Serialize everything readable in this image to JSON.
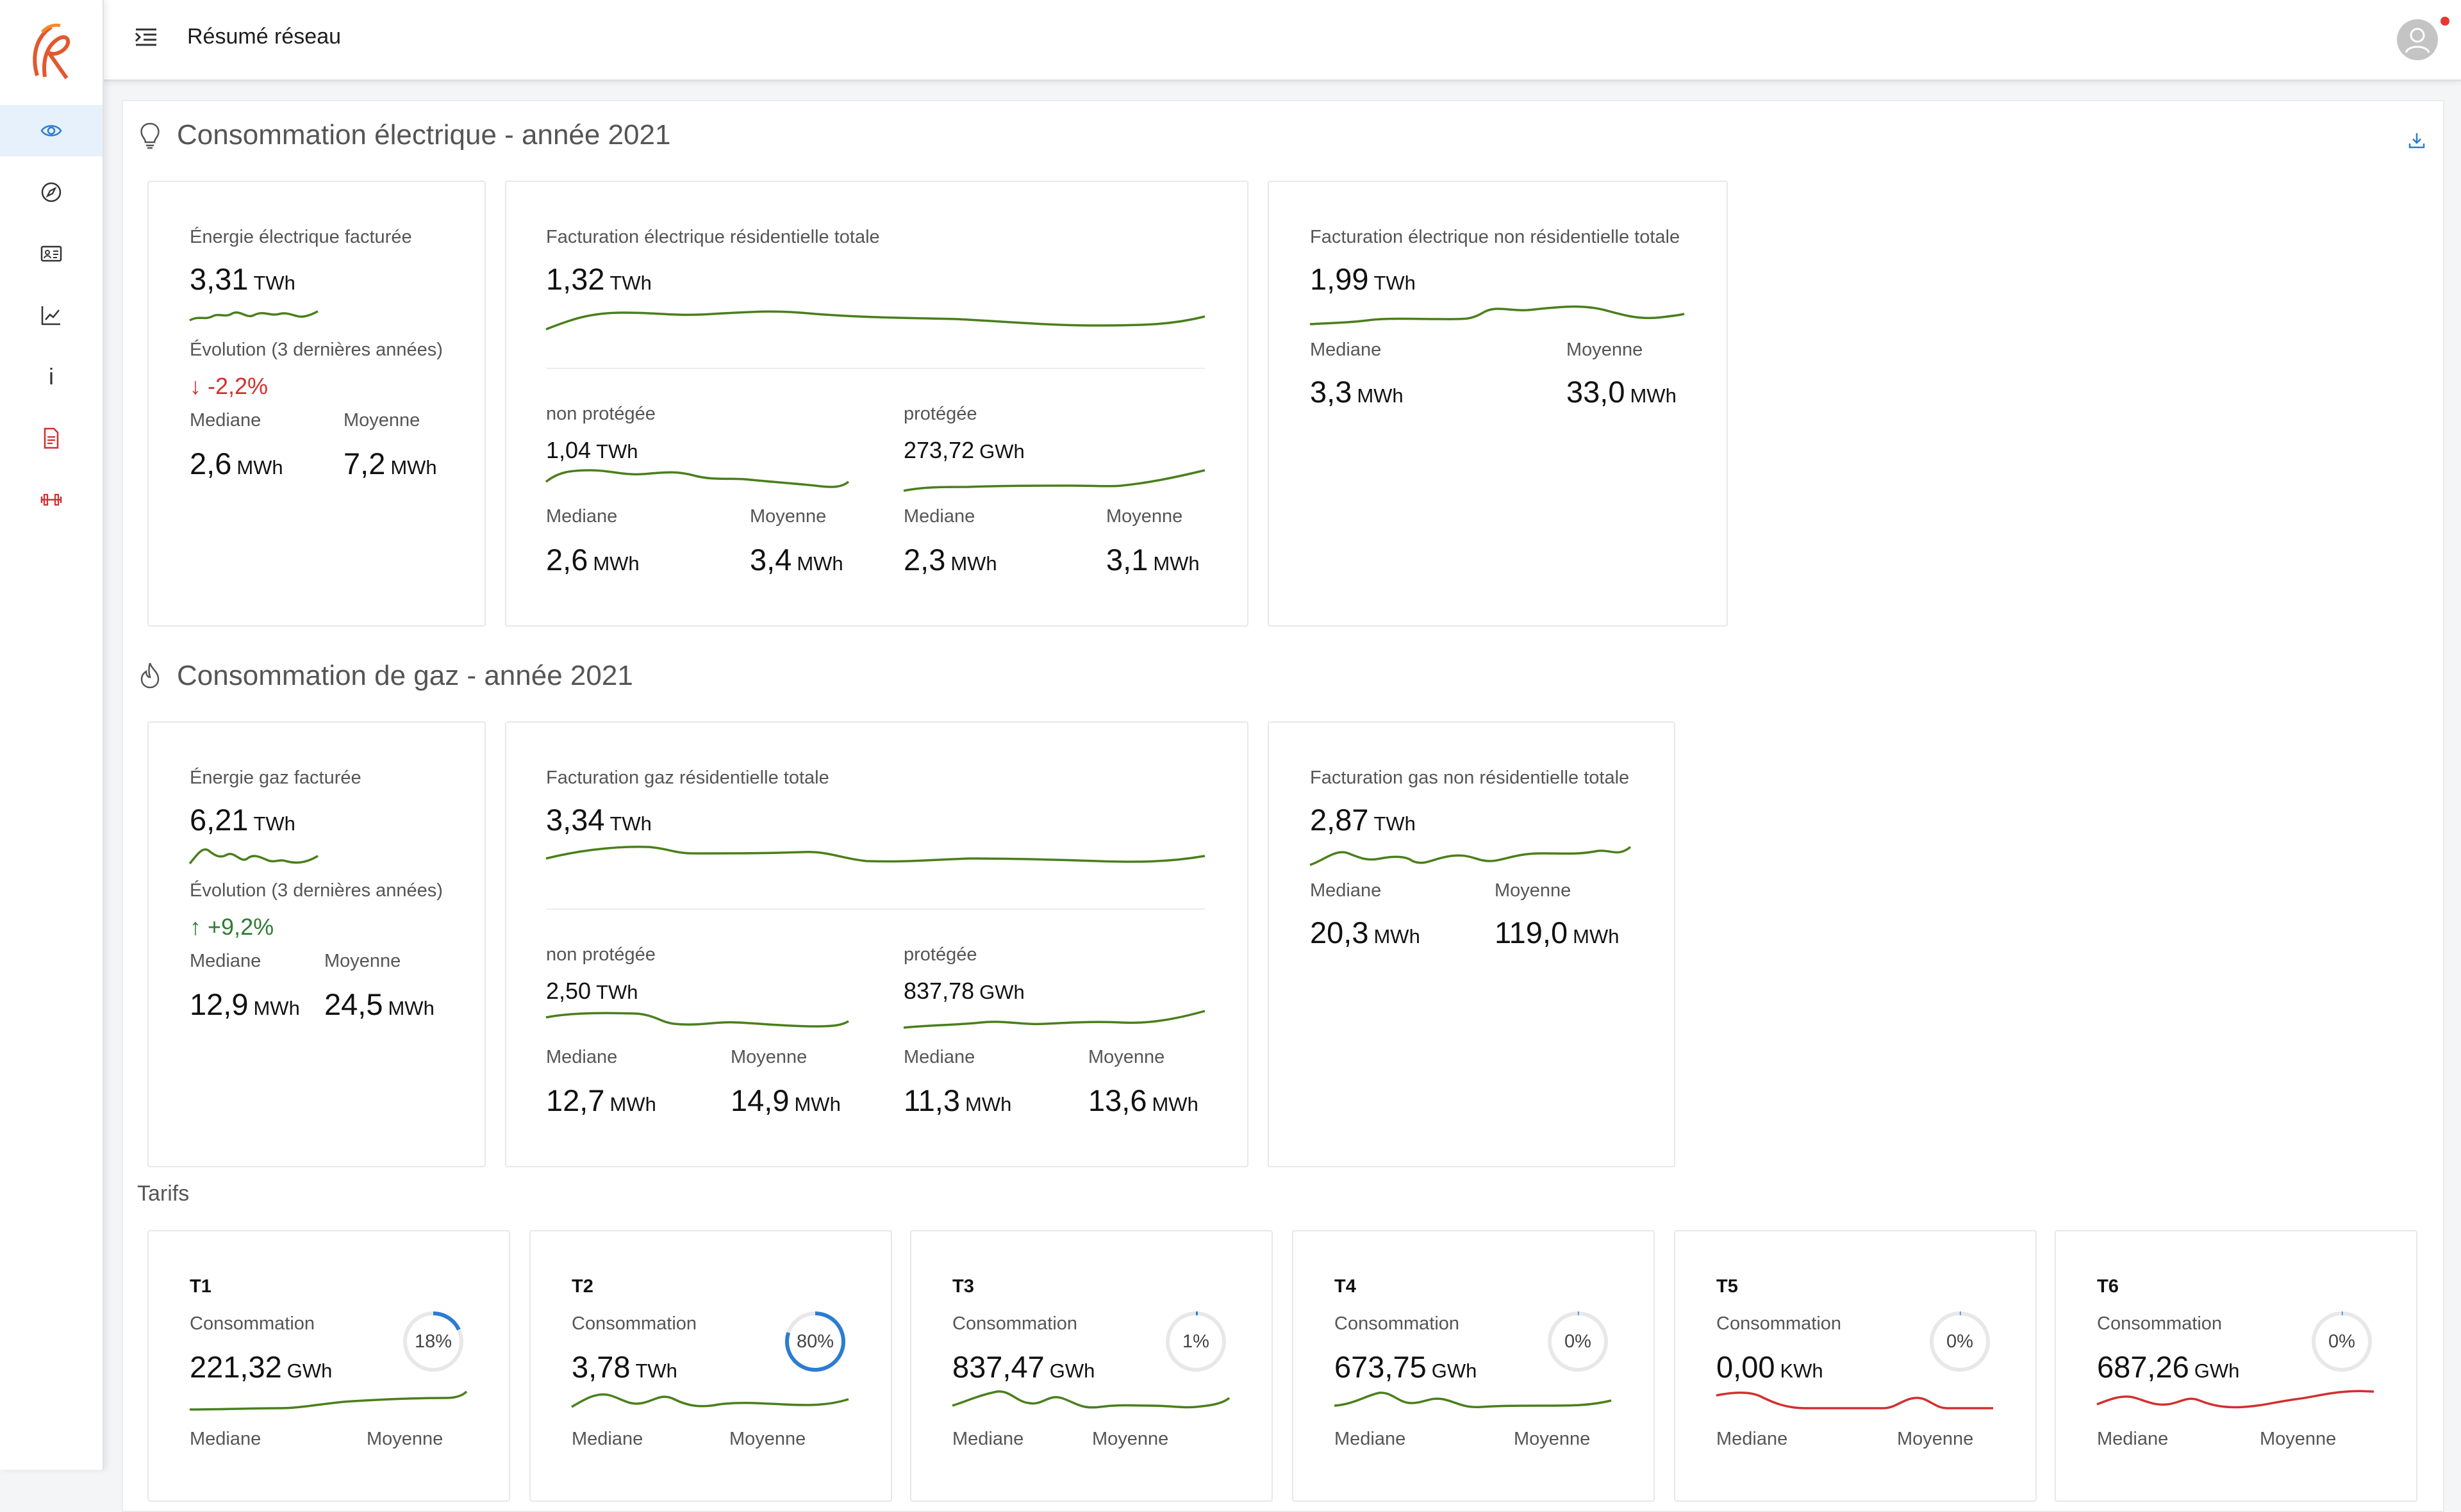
{
  "header": {
    "title": "Résumé réseau"
  },
  "sidebar": {
    "items": [
      {
        "icon": "eye-icon",
        "active": true
      },
      {
        "icon": "compass-icon"
      },
      {
        "icon": "id-card-icon"
      },
      {
        "icon": "line-chart-icon"
      },
      {
        "icon": "info-icon",
        "text": "i"
      },
      {
        "icon": "document-icon"
      },
      {
        "icon": "barbell-icon"
      }
    ]
  },
  "colors": {
    "green": "#4a7f1c",
    "red": "#d32f2f",
    "blue": "#2b7cd3",
    "active_bg": "#e6f1fb"
  },
  "elec": {
    "title": "Consommation électrique - année 2021",
    "card1": {
      "label": "Énergie électrique facturée",
      "value": "3,31",
      "unit": "TWh",
      "evo_label": "Évolution (3 dernières années)",
      "evo_arrow": "↓",
      "evo_value": "-2,2%",
      "median_label": "Mediane",
      "median": "2,6",
      "median_unit": "MWh",
      "mean_label": "Moyenne",
      "mean": "7,2",
      "mean_unit": "MWh"
    },
    "card2": {
      "label": "Facturation électrique résidentielle totale",
      "value": "1,32",
      "unit": "TWh",
      "np": {
        "label": "non protégée",
        "value": "1,04",
        "unit": "TWh",
        "median_label": "Mediane",
        "median": "2,6",
        "median_unit": "MWh",
        "mean_label": "Moyenne",
        "mean": "3,4",
        "mean_unit": "MWh"
      },
      "p": {
        "label": "protégée",
        "value": "273,72",
        "unit": "GWh",
        "median_label": "Mediane",
        "median": "2,3",
        "median_unit": "MWh",
        "mean_label": "Moyenne",
        "mean": "3,1",
        "mean_unit": "MWh"
      }
    },
    "card3": {
      "label": "Facturation électrique non résidentielle totale",
      "value": "1,99",
      "unit": "TWh",
      "median_label": "Mediane",
      "median": "3,3",
      "median_unit": "MWh",
      "mean_label": "Moyenne",
      "mean": "33,0",
      "mean_unit": "MWh"
    }
  },
  "gaz": {
    "title": "Consommation de gaz - année 2021",
    "card1": {
      "label": "Énergie gaz facturée",
      "value": "6,21",
      "unit": "TWh",
      "evo_label": "Évolution (3 dernières années)",
      "evo_arrow": "↑",
      "evo_value": "+9,2%",
      "median_label": "Mediane",
      "median": "12,9",
      "median_unit": "MWh",
      "mean_label": "Moyenne",
      "mean": "24,5",
      "mean_unit": "MWh"
    },
    "card2": {
      "label": "Facturation gaz résidentielle totale",
      "value": "3,34",
      "unit": "TWh",
      "np": {
        "label": "non protégée",
        "value": "2,50",
        "unit": "TWh",
        "median_label": "Mediane",
        "median": "12,7",
        "median_unit": "MWh",
        "mean_label": "Moyenne",
        "mean": "14,9",
        "mean_unit": "MWh"
      },
      "p": {
        "label": "protégée",
        "value": "837,78",
        "unit": "GWh",
        "median_label": "Mediane",
        "median": "11,3",
        "median_unit": "MWh",
        "mean_label": "Moyenne",
        "mean": "13,6",
        "mean_unit": "MWh"
      }
    },
    "card3": {
      "label": "Facturation gas non résidentielle totale",
      "value": "2,87",
      "unit": "TWh",
      "median_label": "Mediane",
      "median": "20,3",
      "median_unit": "MWh",
      "mean_label": "Moyenne",
      "mean": "119,0",
      "mean_unit": "MWh"
    }
  },
  "tarifs": {
    "title": "Tarifs",
    "items": [
      {
        "name": "T1",
        "cons_label": "Consommation",
        "value": "221,32",
        "unit": "GWh",
        "pct": "18%",
        "pct_value": 0.18,
        "median_label": "Mediane",
        "mean_label": "Moyenne"
      },
      {
        "name": "T2",
        "cons_label": "Consommation",
        "value": "3,78",
        "unit": "TWh",
        "pct": "80%",
        "pct_value": 0.8,
        "median_label": "Mediane",
        "mean_label": "Moyenne"
      },
      {
        "name": "T3",
        "cons_label": "Consommation",
        "value": "837,47",
        "unit": "GWh",
        "pct": "1%",
        "pct_value": 0.01,
        "median_label": "Mediane",
        "mean_label": "Moyenne"
      },
      {
        "name": "T4",
        "cons_label": "Consommation",
        "value": "673,75",
        "unit": "GWh",
        "pct": "0%",
        "pct_value": 0.005,
        "median_label": "Mediane",
        "mean_label": "Moyenne"
      },
      {
        "name": "T5",
        "cons_label": "Consommation",
        "value": "0,00",
        "unit": "KWh",
        "pct": "0%",
        "pct_value": 0.005,
        "median_label": "Mediane",
        "mean_label": "Moyenne"
      },
      {
        "name": "T6",
        "cons_label": "Consommation",
        "value": "687,26",
        "unit": "GWh",
        "pct": "0%",
        "pct_value": 0.005,
        "median_label": "Mediane",
        "mean_label": "Moyenne"
      }
    ]
  }
}
